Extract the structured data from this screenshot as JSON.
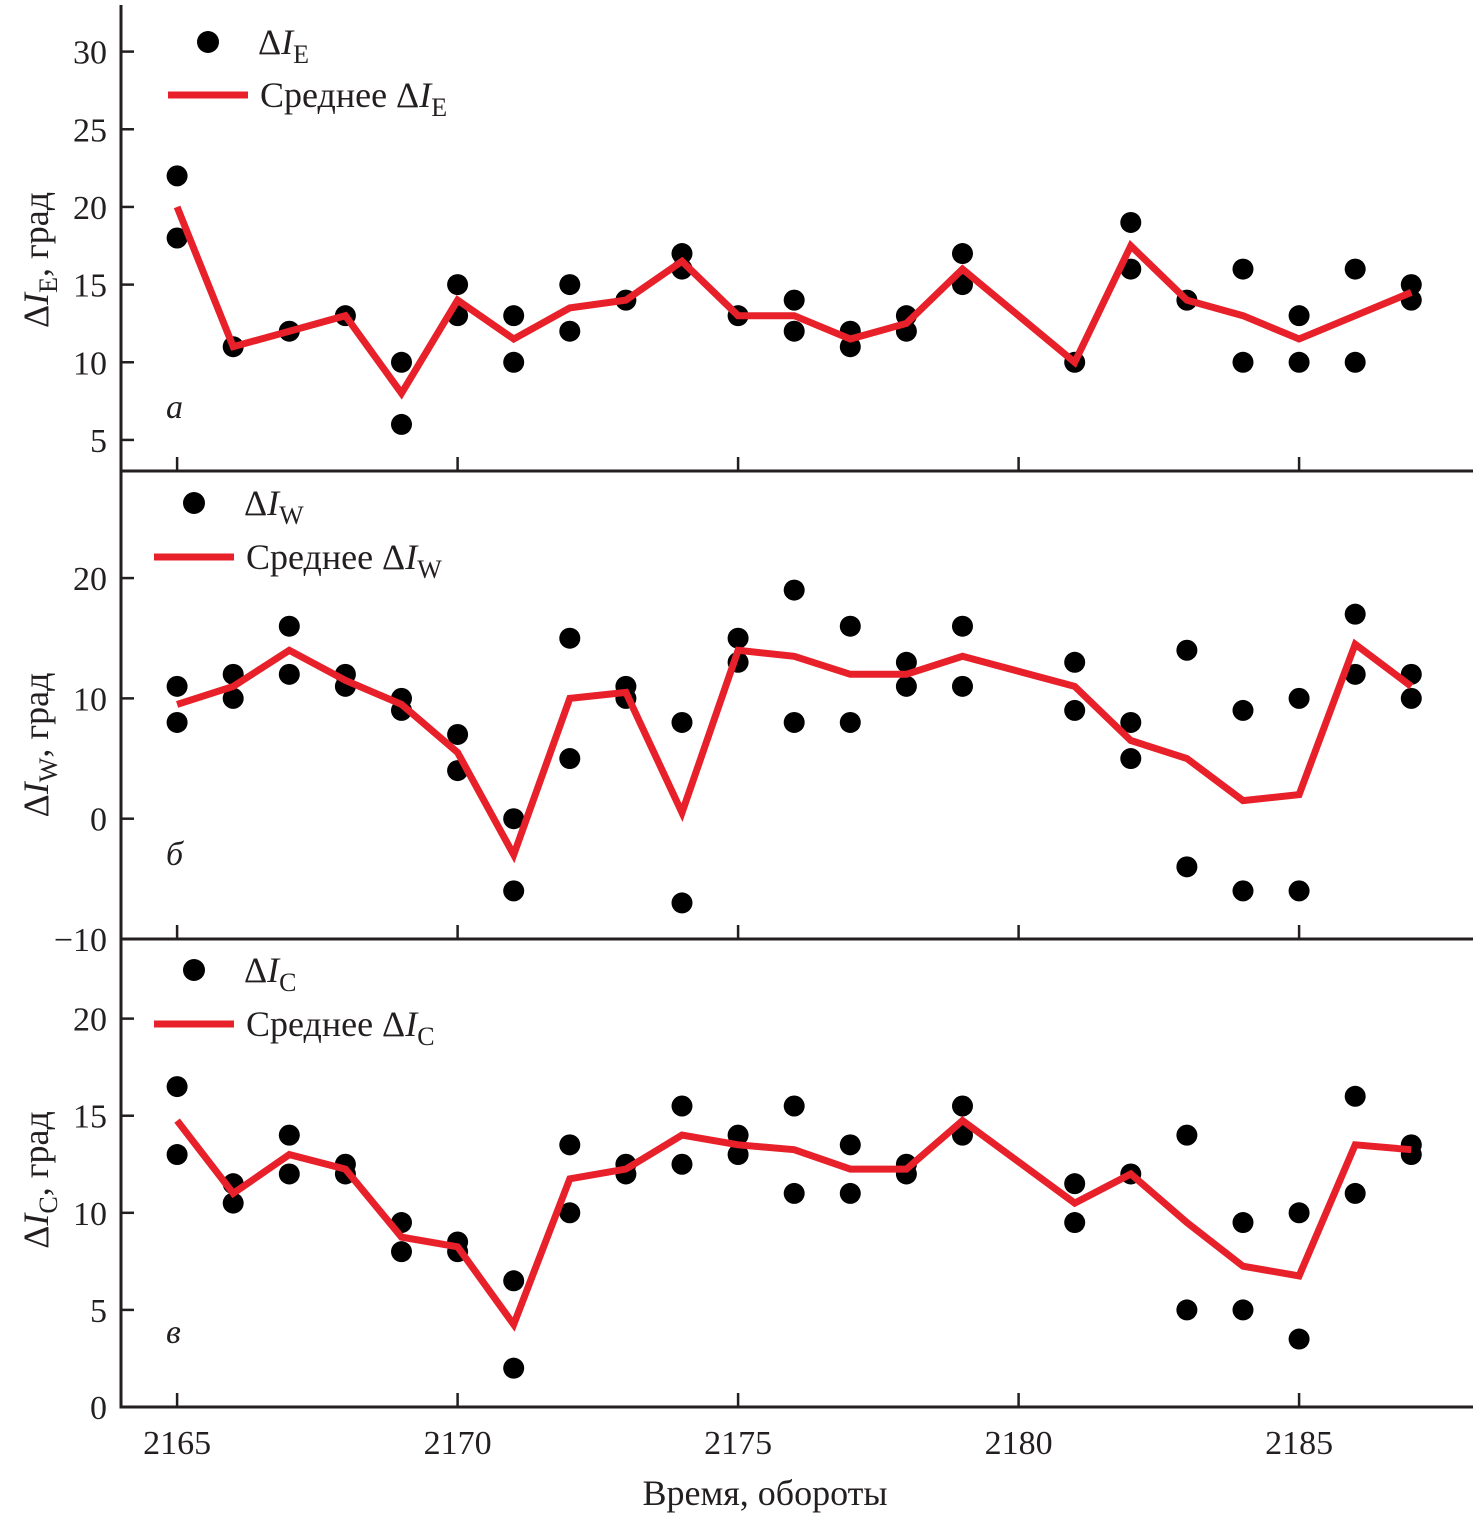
{
  "colors": {
    "points": "#000000",
    "mean_line": "#e8202a",
    "axis": "#231f20"
  },
  "chart_data": [
    {
      "type": "scatter",
      "panel_letter": "а",
      "xlabel": "",
      "ylabel": {
        "prefix": "ΔI",
        "sub": "E",
        "suffix": ", град"
      },
      "ylim": [
        3,
        33
      ],
      "yticks": [
        5,
        10,
        15,
        20,
        25,
        30
      ],
      "xlim": [
        2164,
        2188.1
      ],
      "xticks": [
        2165,
        2170,
        2175,
        2180,
        2185
      ],
      "grid": false,
      "legend": {
        "position": "top-left",
        "points_label": {
          "prefix": "ΔI",
          "sub": "E"
        },
        "mean_label": {
          "prefix": "Среднее ΔI",
          "sub": "E"
        }
      },
      "series": [
        {
          "name": "ΔI_E",
          "kind": "points",
          "x": [
            2165,
            2165,
            2166,
            2167,
            2168,
            2169,
            2169,
            2170,
            2170,
            2171,
            2171,
            2172,
            2172,
            2173,
            2174,
            2174,
            2175,
            2176,
            2176,
            2177,
            2177,
            2178,
            2178,
            2179,
            2179,
            2181,
            2182,
            2182,
            2183,
            2184,
            2184,
            2185,
            2185,
            2186,
            2186,
            2187,
            2187
          ],
          "y": [
            22,
            18,
            11,
            12,
            13,
            10,
            6,
            15,
            13,
            13,
            10,
            15,
            12,
            14,
            17,
            16,
            13,
            14,
            12,
            12,
            11,
            13,
            12,
            17,
            15,
            10,
            19,
            16,
            14,
            16,
            10,
            13,
            10,
            16,
            10,
            15,
            14
          ]
        },
        {
          "name": "Среднее ΔI_E",
          "kind": "line",
          "x": [
            2165,
            2166,
            2167,
            2168,
            2169,
            2170,
            2171,
            2172,
            2173,
            2174,
            2175,
            2176,
            2177,
            2178,
            2179,
            2181,
            2182,
            2183,
            2184,
            2185,
            2186,
            2187
          ],
          "y": [
            20,
            11,
            12,
            13,
            8,
            14,
            11.5,
            13.5,
            14,
            16.5,
            13,
            13,
            11.5,
            12.5,
            16,
            10,
            17.5,
            14,
            13,
            11.5,
            13,
            14.5
          ]
        }
      ]
    },
    {
      "type": "scatter",
      "panel_letter": "б",
      "xlabel": "",
      "ylabel": {
        "prefix": "ΔI",
        "sub": "W",
        "suffix": ", град"
      },
      "ylim": [
        -10,
        28.9
      ],
      "yticks": [
        -10,
        0,
        10,
        20
      ],
      "xlim": [
        2164,
        2188.1
      ],
      "xticks": [
        2165,
        2170,
        2175,
        2180,
        2185
      ],
      "grid": false,
      "legend": {
        "position": "top-left",
        "points_label": {
          "prefix": "ΔI",
          "sub": "W"
        },
        "mean_label": {
          "prefix": "Среднее ΔI",
          "sub": "W"
        }
      },
      "series": [
        {
          "name": "ΔI_W",
          "kind": "points",
          "x": [
            2165,
            2165,
            2166,
            2166,
            2167,
            2167,
            2168,
            2168,
            2169,
            2169,
            2170,
            2170,
            2171,
            2171,
            2172,
            2172,
            2173,
            2173,
            2174,
            2174,
            2175,
            2175,
            2176,
            2176,
            2177,
            2177,
            2178,
            2178,
            2179,
            2179,
            2181,
            2181,
            2182,
            2182,
            2183,
            2183,
            2184,
            2184,
            2185,
            2185,
            2186,
            2186,
            2187,
            2187
          ],
          "y": [
            11,
            8,
            12,
            10,
            16,
            12,
            12,
            11,
            10,
            9,
            7,
            4,
            0,
            -6,
            15,
            5,
            11,
            10,
            8,
            -7,
            15,
            13,
            19,
            8,
            16,
            8,
            13,
            11,
            16,
            11,
            13,
            9,
            8,
            5,
            14,
            -4,
            9,
            -6,
            10,
            -6,
            17,
            12,
            12,
            10
          ]
        },
        {
          "name": "Среднее ΔI_W",
          "kind": "line",
          "x": [
            2165,
            2166,
            2167,
            2168,
            2169,
            2170,
            2171,
            2172,
            2173,
            2174,
            2175,
            2176,
            2177,
            2178,
            2179,
            2181,
            2182,
            2183,
            2184,
            2185,
            2186,
            2187
          ],
          "y": [
            9.5,
            11,
            14,
            11.5,
            9.5,
            5.5,
            -3,
            10,
            10.5,
            0.5,
            14,
            13.5,
            12,
            12,
            13.5,
            11,
            6.5,
            5,
            1.5,
            2,
            14.5,
            11
          ]
        }
      ]
    },
    {
      "type": "scatter",
      "panel_letter": "в",
      "xlabel": "Время, обороты",
      "ylabel": {
        "prefix": "ΔI",
        "sub": "C",
        "suffix": ", град"
      },
      "ylim": [
        0,
        24.1
      ],
      "yticks": [
        0,
        5,
        10,
        15,
        20
      ],
      "xlim": [
        2164,
        2188.1
      ],
      "xticks": [
        2165,
        2170,
        2175,
        2180,
        2185
      ],
      "grid": false,
      "legend": {
        "position": "top-left",
        "points_label": {
          "prefix": "ΔI",
          "sub": "C"
        },
        "mean_label": {
          "prefix": "Среднее ΔI",
          "sub": "C"
        }
      },
      "series": [
        {
          "name": "ΔI_C",
          "kind": "points",
          "x": [
            2165,
            2165,
            2166,
            2166,
            2167,
            2167,
            2168,
            2168,
            2169,
            2169,
            2170,
            2170,
            2171,
            2171,
            2172,
            2172,
            2173,
            2173,
            2174,
            2174,
            2175,
            2175,
            2176,
            2176,
            2177,
            2177,
            2178,
            2178,
            2179,
            2179,
            2181,
            2181,
            2182,
            2183,
            2183,
            2184,
            2184,
            2185,
            2185,
            2186,
            2186,
            2187,
            2187
          ],
          "y": [
            16.5,
            13,
            11.5,
            10.5,
            14,
            12,
            12.5,
            12,
            9.5,
            8,
            8.5,
            8,
            6.5,
            2,
            13.5,
            10,
            12.5,
            12,
            15.5,
            12.5,
            14,
            13,
            15.5,
            11,
            13.5,
            11,
            12.5,
            12,
            15.5,
            14,
            11.5,
            9.5,
            12,
            14,
            5,
            9.5,
            5,
            10,
            3.5,
            16,
            11,
            13.5,
            13
          ]
        },
        {
          "name": "Среднее ΔI_C",
          "kind": "line",
          "x": [
            2165,
            2166,
            2167,
            2168,
            2169,
            2170,
            2171,
            2172,
            2173,
            2174,
            2175,
            2176,
            2177,
            2178,
            2179,
            2181,
            2182,
            2183,
            2184,
            2185,
            2186,
            2187
          ],
          "y": [
            14.75,
            11,
            13,
            12.25,
            8.75,
            8.25,
            4.25,
            11.75,
            12.25,
            14,
            13.5,
            13.25,
            12.25,
            12.25,
            14.75,
            10.5,
            12,
            9.5,
            7.25,
            6.75,
            13.5,
            13.25
          ]
        }
      ]
    }
  ]
}
